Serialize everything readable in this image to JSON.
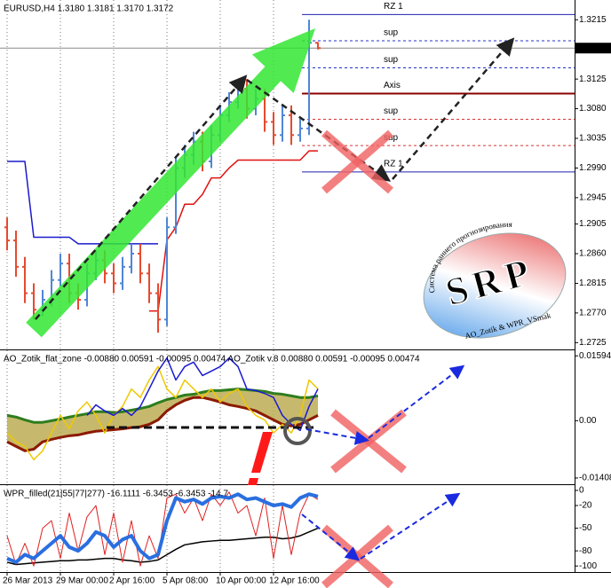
{
  "chart_data": [
    {
      "type": "ohlc",
      "title": "EURUSD,H4  1.3180 1.3181 1.3170 1.3172",
      "open": [
        1.29,
        1.288,
        1.284,
        1.28,
        1.2775,
        1.279,
        1.282,
        1.2845,
        1.28,
        1.279,
        1.283,
        1.285,
        1.283,
        1.2815,
        1.284,
        1.286,
        1.283,
        1.28,
        1.276,
        1.29,
        1.299,
        1.301,
        1.303,
        1.3,
        1.304,
        1.307,
        1.309,
        1.311,
        1.308,
        1.3095,
        1.306,
        1.304,
        1.307,
        1.304,
        1.305,
        1.318
      ],
      "high": [
        1.2915,
        1.2895,
        1.2855,
        1.2815,
        1.2805,
        1.2835,
        1.286,
        1.286,
        1.2815,
        1.2845,
        1.2865,
        1.2865,
        1.2845,
        1.2855,
        1.2875,
        1.2875,
        1.2845,
        1.2815,
        1.2915,
        1.3005,
        1.3025,
        1.3045,
        1.3045,
        1.3055,
        1.3085,
        1.3105,
        1.3125,
        1.3125,
        1.311,
        1.311,
        1.3075,
        1.3085,
        1.3085,
        1.3065,
        1.3215,
        1.3181
      ],
      "low": [
        1.2865,
        1.2825,
        1.2785,
        1.276,
        1.2765,
        1.278,
        1.281,
        1.2785,
        1.2775,
        1.278,
        1.282,
        1.2815,
        1.28,
        1.2805,
        1.283,
        1.2815,
        1.2785,
        1.274,
        1.275,
        1.289,
        1.2975,
        1.2995,
        1.2985,
        1.299,
        1.303,
        1.306,
        1.308,
        1.3065,
        1.307,
        1.3045,
        1.3025,
        1.303,
        1.3025,
        1.303,
        1.304,
        1.317
      ],
      "close": [
        1.288,
        1.284,
        1.28,
        1.2775,
        1.279,
        1.282,
        1.2845,
        1.28,
        1.279,
        1.283,
        1.285,
        1.283,
        1.2815,
        1.284,
        1.286,
        1.283,
        1.28,
        1.276,
        1.29,
        1.299,
        1.301,
        1.303,
        1.3,
        1.304,
        1.307,
        1.309,
        1.311,
        1.308,
        1.3095,
        1.306,
        1.304,
        1.307,
        1.304,
        1.305,
        1.318,
        1.3172
      ],
      "up_color": "#4f86d6",
      "down_color": "#e64a2e",
      "series": [
        {
          "color": "#1a1acc",
          "width": 1.5,
          "values": [
            1.3,
            1.3,
            1.3,
            1.2885,
            1.2885,
            1.2885,
            1.2885,
            1.2885,
            1.2875,
            1.2875,
            1.2875,
            1.2875,
            1.2875,
            1.2875,
            1.2875,
            1.2875,
            1.2875,
            1.2875,
            null,
            null,
            null,
            null,
            null,
            null,
            null,
            null,
            null,
            null,
            null,
            null,
            null,
            null,
            null,
            null,
            null,
            null
          ]
        },
        {
          "color": "#e01010",
          "width": 1.5,
          "values": [
            null,
            null,
            null,
            null,
            null,
            null,
            null,
            null,
            null,
            null,
            null,
            null,
            null,
            null,
            null,
            null,
            1.2773,
            1.2773,
            1.2881,
            1.29,
            1.2935,
            1.2935,
            1.295,
            1.2975,
            1.2975,
            1.299,
            1.3002,
            1.3002,
            1.3002,
            1.3002,
            1.3002,
            1.3002,
            1.3002,
            1.3002,
            1.3016,
            1.3016
          ]
        }
      ],
      "levels": [
        {
          "label": "RZ 1",
          "value": 1.3223,
          "color": "#2020b0",
          "style": "solid",
          "width": 1
        },
        {
          "label": "sup",
          "value": 1.3183,
          "color": "#2030d0",
          "style": "dashed",
          "width": 1
        },
        {
          "label": "sup",
          "value": 1.3142,
          "color": "#2030d0",
          "style": "dashed",
          "width": 1
        },
        {
          "label": "Axis",
          "value": 1.3103,
          "color": "#8b0000",
          "style": "solid",
          "width": 2
        },
        {
          "label": "sup",
          "value": 1.3064,
          "color": "#e03030",
          "style": "dashed",
          "width": 1
        },
        {
          "label": "sup",
          "value": 1.3024,
          "color": "#e03030",
          "style": "dashed",
          "width": 1
        },
        {
          "label": "RZ 1",
          "value": 1.2984,
          "color": "#2020b0",
          "style": "solid",
          "width": 1
        }
      ],
      "ylim": [
        1.2716,
        1.3245
      ],
      "yticks": [
        1.3215,
        1.3125,
        {
          "value": 1.308,
          "label": "1.3080"
        },
        1.3035,
        {
          "value": 1.299,
          "label": "1.2990"
        },
        1.2945,
        1.2905,
        {
          "value": 1.286,
          "label": "1.2860"
        },
        1.2815,
        {
          "value": 1.277,
          "label": "1.2770"
        },
        1.2725
      ]
    },
    {
      "type": "line",
      "title": "AO_Zotik_flat_zone -0.00880 0.00591 -0.00095 0.00474  AO_Zotik v.8 0.00880 0.00591 -0.00095 0.00474",
      "fill_between": [
        1,
        0
      ],
      "fill_color": "#b8a848",
      "series": [
        {
          "color": "#8b1a00",
          "width": 3,
          "values": [
            -0.0052,
            -0.0063,
            -0.0074,
            -0.007,
            -0.0052,
            -0.0046,
            -0.0041,
            -0.0037,
            -0.0035,
            -0.003,
            -0.0026,
            -0.0024,
            -0.0022,
            -0.002,
            -0.0017,
            -0.0015,
            -0.0009,
            0.0002,
            0.0024,
            0.0039,
            0.005,
            0.0057,
            0.0057,
            0.0052,
            0.0046,
            0.0039,
            0.0035,
            0.003,
            0.0024,
            0.0013,
            0.0002,
            -0.0009,
            -0.0013,
            -0.0009,
            0.0002,
            0.0013
          ]
        },
        {
          "color": "#2e7d1e",
          "width": 3,
          "values": [
            0.0013,
            0.0009,
            0.0002,
            -0.0004,
            -0.0004,
            0,
            0.0004,
            0.0009,
            0.0013,
            0.0017,
            0.0022,
            0.0022,
            0.002,
            0.0022,
            0.0026,
            0.003,
            0.0035,
            0.0044,
            0.0052,
            0.0057,
            0.0063,
            0.0065,
            0.007,
            0.0074,
            0.0074,
            0.0076,
            0.0078,
            0.0076,
            0.0074,
            0.0072,
            0.0067,
            0.0065,
            0.0061,
            0.0057,
            0.0057,
            0.0061
          ]
        },
        {
          "color": "#f0c800",
          "width": 1.5,
          "values": [
            -0.003,
            -0.0052,
            -0.0063,
            -0.0096,
            -0.0074,
            -0.003,
            0.0013,
            -0.002,
            0.0024,
            0.0046,
            0.0013,
            -0.003,
            0.0013,
            0.0035,
            0.0078,
            0.0057,
            0.01,
            0.0133,
            0.0078,
            0.0057,
            0.01,
            0.0078,
            0.0057,
            0.0078,
            0.0046,
            0.0067,
            0.0078,
            0.0035,
            0.0013,
            0.0002,
            -0.003,
            -0.0009,
            -0.003,
            0.0013,
            0.01,
            0.0078
          ]
        },
        {
          "color": "#1a1ad0",
          "width": 1.5,
          "values": [
            null,
            null,
            null,
            null,
            null,
            null,
            null,
            null,
            null,
            0.0013,
            0.0039,
            0.0024,
            0.0013,
            0.003,
            0.0013,
            0.0035,
            0.0078,
            0.0122,
            0.0154,
            0.01,
            0.0133,
            0.0144,
            0.0111,
            0.0122,
            0.0133,
            0.0154,
            0.0133,
            0.0078,
            0.0074,
            0.0067,
            0.0057,
            0.0013,
            -0.0009,
            -0.0024,
            0.0035,
            0.0078
          ]
        }
      ],
      "ylim": [
        -0.0154,
        0.0173
      ],
      "yticks": [
        0.01594,
        {
          "value": 0,
          "label": "0.00"
        },
        -0.01408
      ]
    },
    {
      "type": "line",
      "title": "WPR_filled(21|55|77|277) -16.1111 -6.3453 -6.3453 -14.7",
      "series": [
        {
          "color": "#000000",
          "width": 1.5,
          "values": [
            -95,
            -98,
            -97,
            -96,
            -95,
            -94,
            -93,
            -93,
            -92,
            -92,
            -91,
            -90,
            -90,
            -92,
            -93,
            -95,
            -94,
            -92,
            -85,
            -78,
            -72,
            -70,
            -68,
            -67,
            -66,
            -66,
            -65,
            -64,
            -63,
            -62,
            -62,
            -64,
            -63,
            -60,
            -55,
            -50
          ]
        },
        {
          "color": "#e02020",
          "width": 1,
          "values": [
            -60,
            -98,
            -70,
            -100,
            -50,
            -40,
            -90,
            -30,
            -80,
            -35,
            -20,
            -85,
            -30,
            -95,
            -40,
            -100,
            -60,
            -90,
            -10,
            -5,
            -30,
            -10,
            -40,
            -5,
            -20,
            -2,
            -30,
            -20,
            -60,
            -10,
            -90,
            -20,
            -85,
            -30,
            -5,
            -12
          ]
        },
        {
          "color": "#2a6fe0",
          "width": 4,
          "values": [
            -90,
            -95,
            -85,
            -90,
            -80,
            -70,
            -60,
            -75,
            -80,
            -70,
            -55,
            -60,
            -75,
            -65,
            -60,
            -80,
            -90,
            -85,
            -40,
            -10,
            -15,
            -12,
            -18,
            -10,
            -8,
            -10,
            -5,
            -12,
            -10,
            -15,
            -20,
            -18,
            -22,
            -10,
            -5,
            -8
          ]
        }
      ],
      "ylim": [
        -108,
        7
      ],
      "yticks": [
        0,
        -20,
        -50,
        -80,
        -100
      ]
    }
  ],
  "time_axis": {
    "xlim": [
      -0.8,
      63.9
    ],
    "grid": true,
    "xticks": [
      {
        "value": 0,
        "label": "26 Mar 2013"
      },
      {
        "value": 6,
        "label": "29 Mar 00:00"
      },
      {
        "value": 12,
        "label": "2 Apr 16:00"
      },
      {
        "value": 18,
        "label": "5 Apr 08:00"
      },
      {
        "value": 24,
        "label": "10 Apr 00:00"
      },
      {
        "value": 30,
        "label": "12 Apr 16:00"
      }
    ]
  },
  "logo": {
    "arc_text": "Система раннего прогнозирования",
    "name": "SRP",
    "author": "AO_Zotik & WPR_VSmak"
  }
}
